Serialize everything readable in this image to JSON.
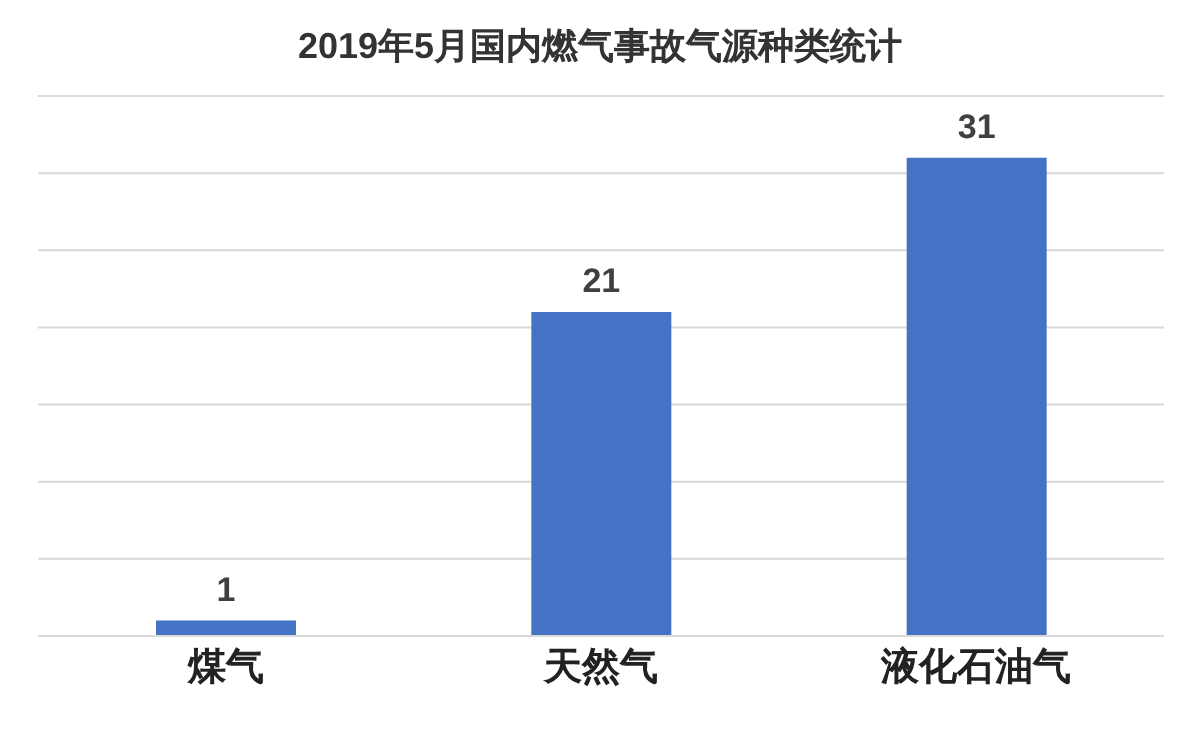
{
  "chart_data": {
    "type": "bar",
    "title": "2019年5月国内燃气事故气源种类统计",
    "categories": [
      "煤气",
      "天然气",
      "液化石油气"
    ],
    "values": [
      1,
      21,
      31
    ],
    "color": "#4472c4",
    "ylim": [
      0,
      35
    ],
    "yticks": [
      {
        "value": 0,
        "label": null
      },
      {
        "value": 5,
        "label": null
      },
      {
        "value": 10,
        "label": null
      },
      {
        "value": 15,
        "label": null
      },
      {
        "value": 20,
        "label": null
      },
      {
        "value": 25,
        "label": null
      },
      {
        "value": 30,
        "label": null
      },
      {
        "value": 35,
        "label": null
      }
    ],
    "grid": "y",
    "data_labels": true,
    "tick_labels": "x"
  }
}
